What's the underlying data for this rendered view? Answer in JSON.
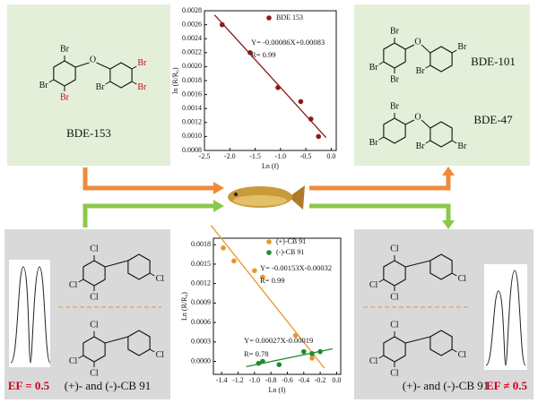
{
  "chart_data": [
    {
      "type": "scatter",
      "x_label": "Ln (f)",
      "y_label": "ln (R/R₀)",
      "xlim": [
        -2.5,
        0.1
      ],
      "ylim": [
        0.0008,
        0.0028
      ],
      "xticks": [
        -2.5,
        {
          "value": -2,
          "label": "-2.0"
        },
        -1.5,
        {
          "value": -1,
          "label": "-1.0"
        },
        -0.5,
        {
          "value": 0,
          "label": "0.0"
        }
      ],
      "yticks": [
        0.0008,
        {
          "value": 0.001,
          "label": "0.0010"
        },
        0.0012,
        0.0014,
        0.0016,
        0.0018,
        {
          "value": 0.002,
          "label": "0.0020"
        },
        0.0022,
        0.0024,
        0.0026,
        0.0028
      ],
      "series": [
        {
          "name": "BDE 153",
          "color": "#8b1a1a",
          "x": [
            -2.15,
            -1.6,
            -1.05,
            -0.6,
            -0.4,
            -0.25
          ],
          "values": [
            0.0026,
            0.0022,
            0.0017,
            0.0015,
            0.00125,
            0.001
          ]
        }
      ],
      "annotations": [
        "Y= -0.00086X+0.00083",
        "R= 0.99"
      ]
    },
    {
      "type": "scatter",
      "x_label": "Ln (f)",
      "y_label": "Ln (R/R₀)",
      "xlim": [
        -1.5,
        0.05
      ],
      "ylim": [
        -0.0002,
        0.0019
      ],
      "xticks": [
        -1.4,
        -1.2,
        {
          "value": -1,
          "label": "-1.0"
        },
        -0.8,
        -0.6,
        -0.4,
        -0.2,
        {
          "value": 0,
          "label": "0.0"
        }
      ],
      "yticks": [
        {
          "value": 0,
          "label": "0.0000"
        },
        0.0003,
        0.0006,
        0.0009,
        0.0012,
        0.0015,
        0.0018
      ],
      "series": [
        {
          "name": "(+)-CB 91",
          "color": "#e8962e",
          "x": [
            -1.38,
            -1.25,
            -1.0,
            -0.9,
            -0.5,
            -0.3
          ],
          "values": [
            0.00175,
            0.00155,
            0.0014,
            0.0013,
            0.0004,
            5e-05
          ]
        },
        {
          "name": "(-)-CB 91",
          "color": "#1e8a2e",
          "x": [
            -0.95,
            -0.9,
            -0.7,
            -0.4,
            -0.3,
            -0.2
          ],
          "values": [
            -3e-05,
            0.0,
            -5e-05,
            0.00015,
            0.00012,
            0.00015
          ]
        }
      ],
      "annotations": [
        "Y= -0.00153X-0.00032",
        "R= 0.99",
        "Y= 0.00027X-0.00019",
        "R= 0.78"
      ]
    }
  ],
  "molecules": [
    {
      "name": "BDE-153",
      "atoms": [
        "Br",
        "O",
        "Br",
        "Br",
        "Br",
        "Br",
        "Br"
      ]
    },
    {
      "name": "BDE-101",
      "atoms": [
        "Br",
        "O",
        "Br",
        "Br",
        "Br",
        "Br"
      ]
    },
    {
      "name": "BDE-47",
      "atoms": [
        "Br",
        "O",
        "Br",
        "Br",
        "Br"
      ]
    },
    {
      "name": "(+)- and (-)-CB 91",
      "ef": "EF = 0.5",
      "atoms_top": [
        "Cl",
        "Cl",
        "Cl",
        "Cl"
      ],
      "atoms_bottom": [
        "Cl",
        "Cl",
        "Cl",
        "Cl"
      ]
    },
    {
      "name": "(+)- and (-)-CB 91",
      "ef": "EF ≠ 0.5",
      "atoms_top": [
        "Cl",
        "Cl",
        "Cl",
        "Cl"
      ],
      "atoms_bottom": [
        "Cl",
        "Cl",
        "Cl",
        "Cl"
      ]
    }
  ]
}
